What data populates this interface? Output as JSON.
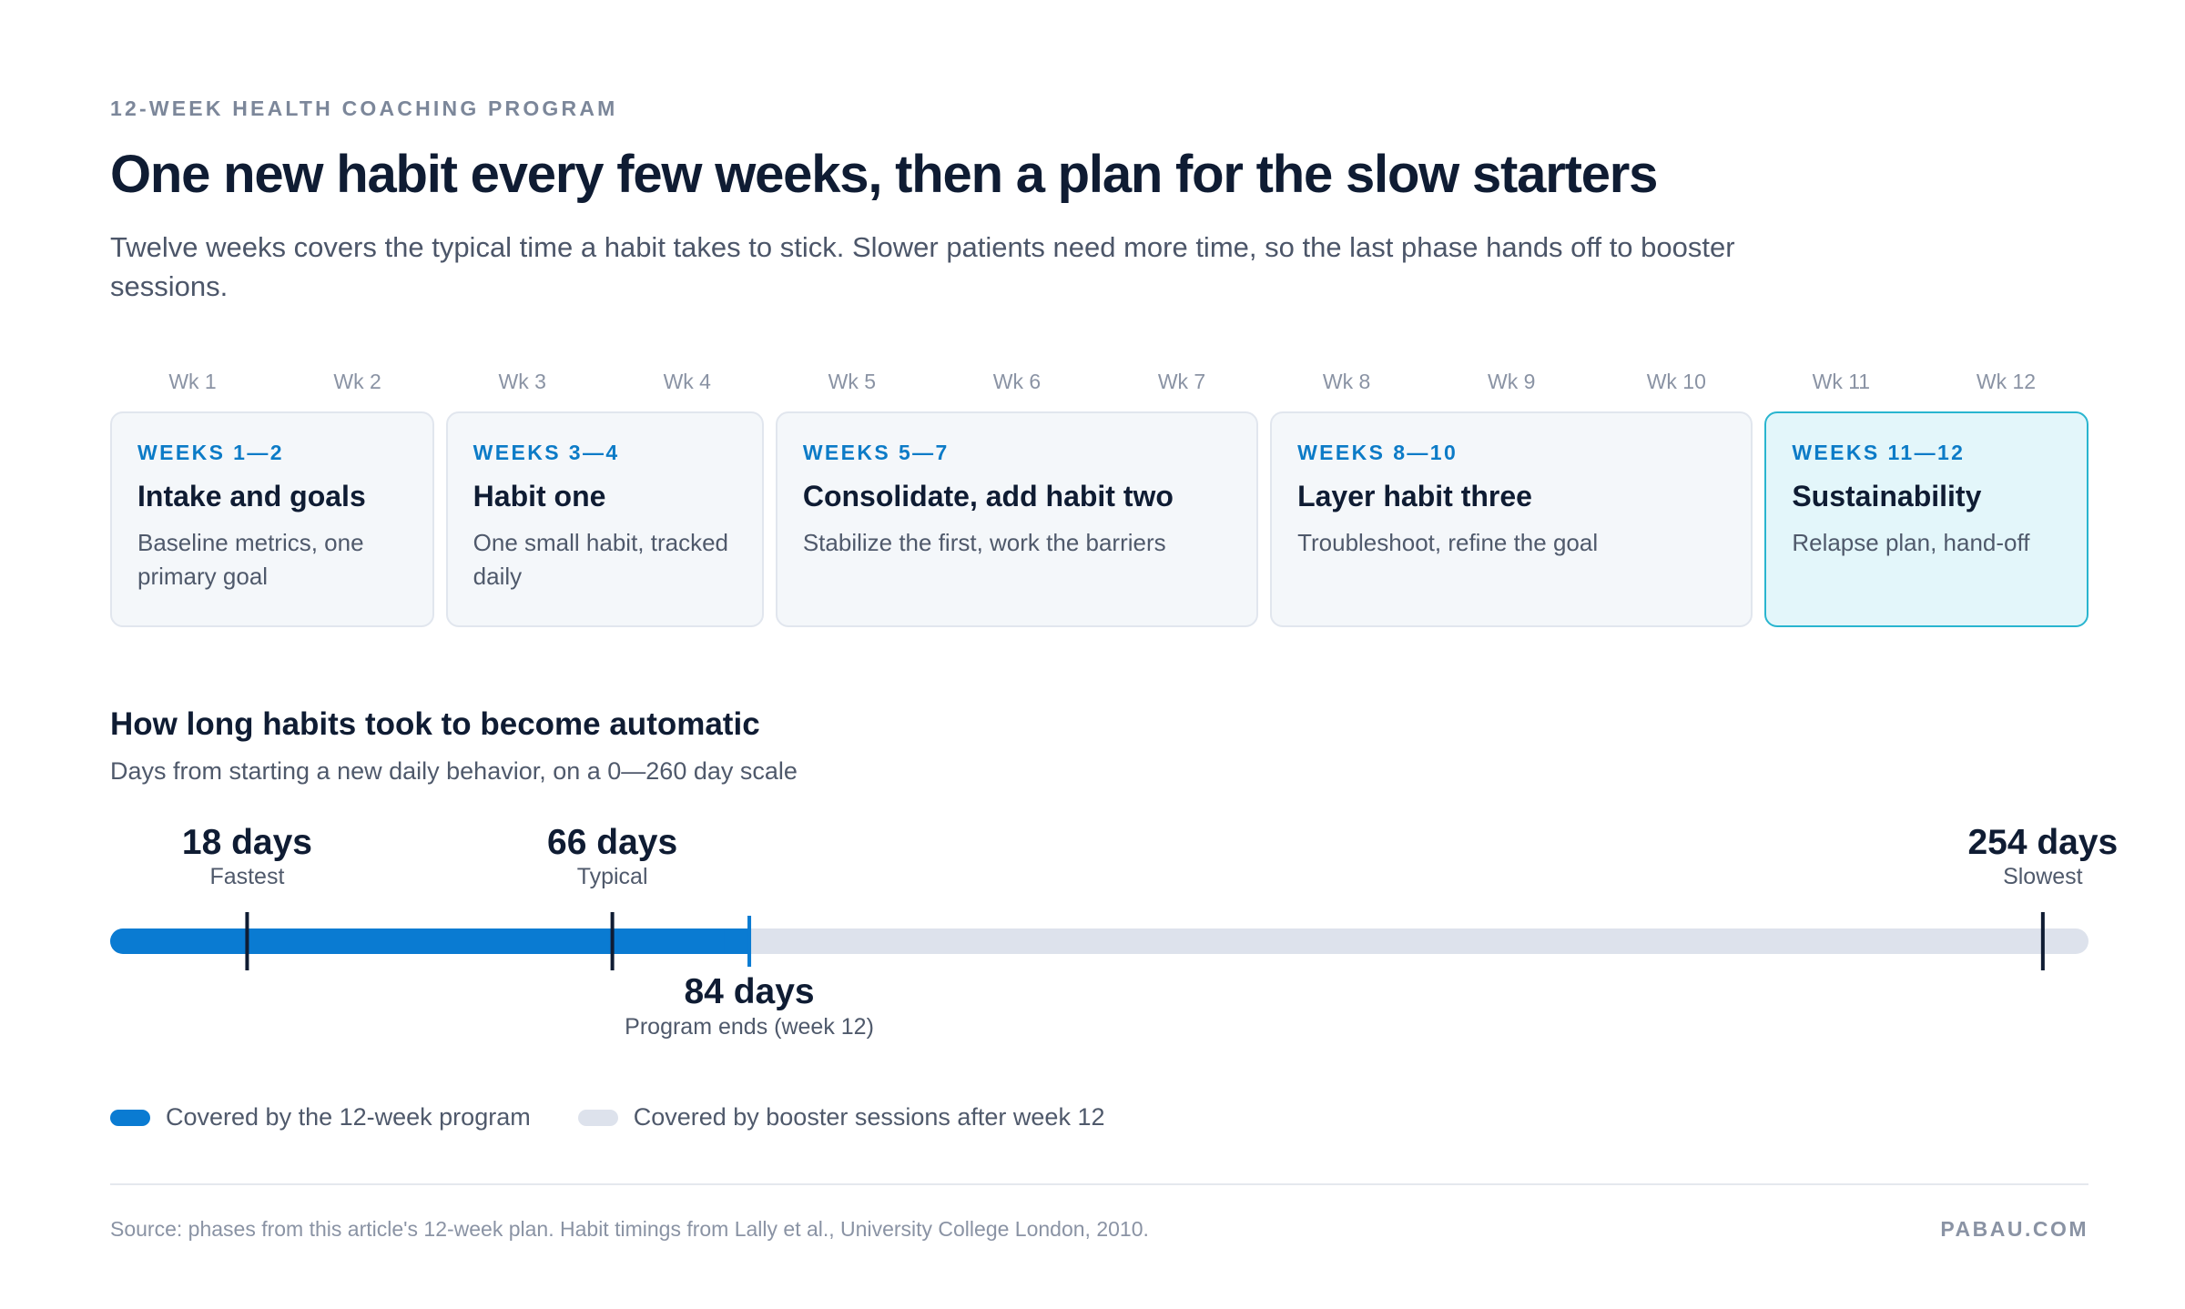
{
  "header": {
    "eyebrow": "12-WEEK HEALTH COACHING PROGRAM",
    "title": "One new habit every few weeks, then a plan for the slow starters",
    "subtitle": "Twelve weeks covers the typical time a habit takes to stick. Slower patients need more time, so the last phase hands off to booster sessions."
  },
  "timeline": {
    "week_labels": [
      "Wk 1",
      "Wk 2",
      "Wk 3",
      "Wk 4",
      "Wk 5",
      "Wk 6",
      "Wk 7",
      "Wk 8",
      "Wk 9",
      "Wk 10",
      "Wk 11",
      "Wk 12"
    ],
    "phases": [
      {
        "weeks": "WEEKS 1—2",
        "title": "Intake and goals",
        "desc": "Baseline metrics, one primary goal",
        "start_week": 1,
        "end_week": 2,
        "highlight": false
      },
      {
        "weeks": "WEEKS 3—4",
        "title": "Habit one",
        "desc": "One small habit, tracked daily",
        "start_week": 3,
        "end_week": 4,
        "highlight": false
      },
      {
        "weeks": "WEEKS 5—7",
        "title": "Consolidate, add habit two",
        "desc": "Stabilize the first, work the barriers",
        "start_week": 5,
        "end_week": 7,
        "highlight": false
      },
      {
        "weeks": "WEEKS 8—10",
        "title": "Layer habit three",
        "desc": "Troubleshoot, refine the goal",
        "start_week": 8,
        "end_week": 10,
        "highlight": false
      },
      {
        "weeks": "WEEKS 11—12",
        "title": "Sustainability",
        "desc": "Relapse plan, hand-off",
        "start_week": 11,
        "end_week": 12,
        "highlight": true
      }
    ]
  },
  "chart_data": {
    "type": "bar",
    "title": "How long habits took to become automatic",
    "subtitle": "Days from starting a new daily behavior, on a 0—260 day scale",
    "xlim": [
      0,
      260
    ],
    "program_end": {
      "value": 84,
      "label": "84 days",
      "caption": "Program ends (week 12)"
    },
    "markers": [
      {
        "value": 18,
        "label": "18 days",
        "caption": "Fastest"
      },
      {
        "value": 66,
        "label": "66 days",
        "caption": "Typical"
      },
      {
        "value": 254,
        "label": "254 days",
        "caption": "Slowest"
      }
    ],
    "legend": [
      {
        "label": "Covered by the 12-week program",
        "color": "#0a7bd2"
      },
      {
        "label": "Covered by booster sessions after week 12",
        "color": "#dde2ec"
      }
    ]
  },
  "colors": {
    "accent": "#0a7bd2",
    "track": "#dde2ec",
    "marker": "#0f1c33",
    "highlight_border": "#29b5cf"
  },
  "footer": {
    "source": "Source: phases from this article's 12-week plan. Habit timings from Lally et al., University College London, 2010.",
    "brand": "PABAU.COM"
  }
}
